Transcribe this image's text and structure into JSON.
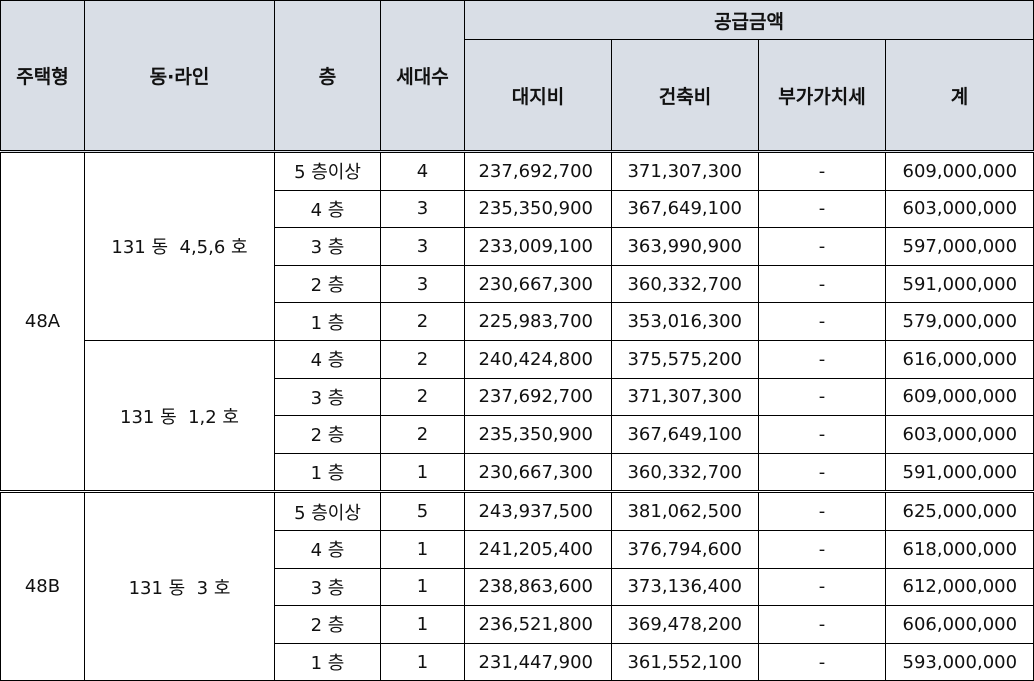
{
  "headers": {
    "type": "주택형",
    "dong_line": "동·라인",
    "floor": "층",
    "households": "세대수",
    "supply_price": "공급금액",
    "land": "대지비",
    "building": "건축비",
    "vat": "부가가치세",
    "total": "계"
  },
  "groups": [
    {
      "type": "48A",
      "sections": [
        {
          "dong": "131 동  4,5,6 호",
          "rows": [
            {
              "floor": "5 층이상",
              "households": "4",
              "land": "237,692,700",
              "building": "371,307,300",
              "vat": "-",
              "total": "609,000,000"
            },
            {
              "floor": "4 층",
              "households": "3",
              "land": "235,350,900",
              "building": "367,649,100",
              "vat": "-",
              "total": "603,000,000"
            },
            {
              "floor": "3 층",
              "households": "3",
              "land": "233,009,100",
              "building": "363,990,900",
              "vat": "-",
              "total": "597,000,000"
            },
            {
              "floor": "2 층",
              "households": "3",
              "land": "230,667,300",
              "building": "360,332,700",
              "vat": "-",
              "total": "591,000,000"
            },
            {
              "floor": "1 층",
              "households": "2",
              "land": "225,983,700",
              "building": "353,016,300",
              "vat": "-",
              "total": "579,000,000"
            }
          ]
        },
        {
          "dong": "131 동  1,2 호",
          "rows": [
            {
              "floor": "4 층",
              "households": "2",
              "land": "240,424,800",
              "building": "375,575,200",
              "vat": "-",
              "total": "616,000,000"
            },
            {
              "floor": "3 층",
              "households": "2",
              "land": "237,692,700",
              "building": "371,307,300",
              "vat": "-",
              "total": "609,000,000"
            },
            {
              "floor": "2 층",
              "households": "2",
              "land": "235,350,900",
              "building": "367,649,100",
              "vat": "-",
              "total": "603,000,000"
            },
            {
              "floor": "1 층",
              "households": "1",
              "land": "230,667,300",
              "building": "360,332,700",
              "vat": "-",
              "total": "591,000,000"
            }
          ]
        }
      ]
    },
    {
      "type": "48B",
      "sections": [
        {
          "dong": "131 동  3 호",
          "rows": [
            {
              "floor": "5 층이상",
              "households": "5",
              "land": "243,937,500",
              "building": "381,062,500",
              "vat": "-",
              "total": "625,000,000"
            },
            {
              "floor": "4 층",
              "households": "1",
              "land": "241,205,400",
              "building": "376,794,600",
              "vat": "-",
              "total": "618,000,000"
            },
            {
              "floor": "3 층",
              "households": "1",
              "land": "238,863,600",
              "building": "373,136,400",
              "vat": "-",
              "total": "612,000,000"
            },
            {
              "floor": "2 층",
              "households": "1",
              "land": "236,521,800",
              "building": "369,478,200",
              "vat": "-",
              "total": "606,000,000"
            },
            {
              "floor": "1 층",
              "households": "1",
              "land": "231,447,900",
              "building": "361,552,100",
              "vat": "-",
              "total": "593,000,000"
            }
          ]
        }
      ]
    }
  ]
}
